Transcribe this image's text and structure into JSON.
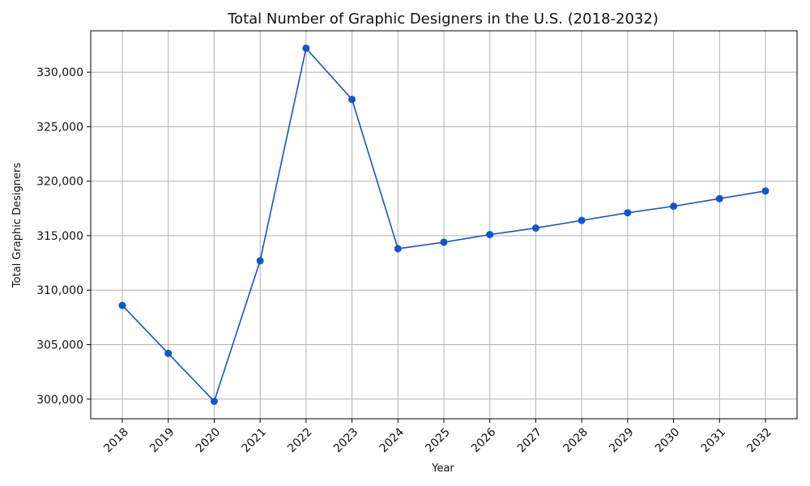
{
  "chart_data": {
    "type": "line",
    "title": "Total Number of Graphic Designers in the U.S. (2018-2032)",
    "xlabel": "Year",
    "ylabel": "Total Graphic Designers",
    "categories": [
      "2018",
      "2019",
      "2020",
      "2021",
      "2022",
      "2023",
      "2024",
      "2025",
      "2026",
      "2027",
      "2028",
      "2029",
      "2030",
      "2031",
      "2032"
    ],
    "series": [
      {
        "values": [
          308600,
          304200,
          299800,
          312700,
          332200,
          327500,
          313800,
          314400,
          315100,
          315700,
          316400,
          317100,
          317700,
          318400,
          319100
        ]
      }
    ],
    "yticks": [
      300000,
      305000,
      310000,
      315000,
      320000,
      325000,
      330000
    ],
    "ytick_labels": [
      "300,000",
      "305,000",
      "310,000",
      "315,000",
      "320,000",
      "325,000",
      "330,000"
    ],
    "ylim": [
      298200,
      333800
    ],
    "grid": true,
    "line_color": "#1155cc"
  }
}
